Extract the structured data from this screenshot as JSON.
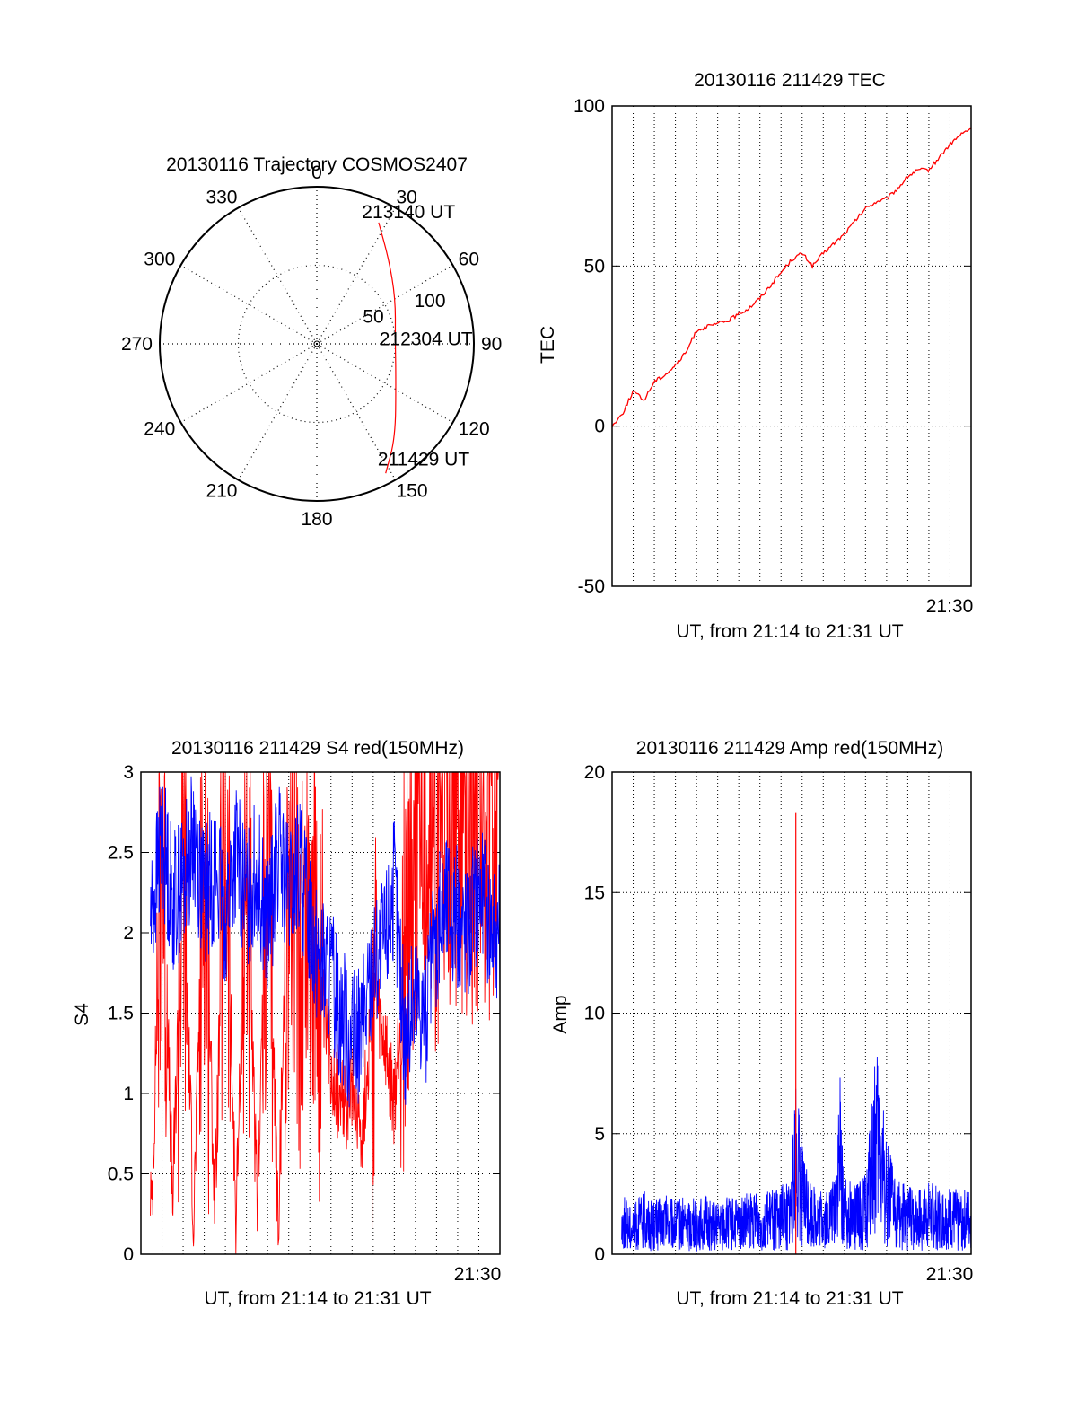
{
  "colors": {
    "red": "#ff0000",
    "blue": "#0000ff",
    "axis": "#000000",
    "grid": "#000000"
  },
  "chart_data": [
    {
      "type": "polar",
      "title": "20130116 Trajectory COSMOS2407",
      "angle_labels": [
        "0",
        "30",
        "60",
        "90",
        "120",
        "150",
        "180",
        "210",
        "240",
        "270",
        "300",
        "330"
      ],
      "radius_labels": [
        "50",
        "100"
      ],
      "trajectory": {
        "points": [
          {
            "az": 27,
            "el": 12
          },
          {
            "az": 40,
            "el": 26
          },
          {
            "az": 60,
            "el": 38
          },
          {
            "az": 88,
            "el": 45
          },
          {
            "az": 115,
            "el": 40
          },
          {
            "az": 140,
            "el": 20
          },
          {
            "az": 152,
            "el": 6
          }
        ],
        "labels": [
          {
            "text": "213140 UT",
            "az": 22,
            "el": 10
          },
          {
            "text": "212304 UT",
            "az": 88,
            "el": 50
          },
          {
            "text": "211429 UT",
            "az": 150,
            "el": 12
          }
        ]
      }
    },
    {
      "type": "line",
      "title": "20130116 211429 TEC",
      "xlabel": "UT, from 21:14 to 21:31 UT",
      "ylabel": "TEC",
      "xlim": [
        0,
        17
      ],
      "ylim": [
        -50,
        100
      ],
      "yticks": [
        -50,
        0,
        50,
        100
      ],
      "xtick_label": "21:30",
      "series": [
        {
          "color": "red",
          "x": [
            0,
            0.5,
            1,
            1.5,
            2,
            2.5,
            3,
            3.5,
            4,
            4.5,
            5,
            5.5,
            6,
            6.5,
            7,
            7.5,
            8,
            8.5,
            9,
            9.5,
            10,
            10.5,
            11,
            11.5,
            12,
            12.5,
            13,
            13.5,
            14,
            14.5,
            15,
            15.5,
            16,
            16.5,
            17
          ],
          "y": [
            0,
            4,
            11,
            8,
            14,
            16,
            19,
            23,
            30,
            31,
            32,
            33,
            35,
            37,
            40,
            44,
            48,
            52,
            54,
            50,
            54,
            57,
            60,
            64,
            68,
            70,
            71,
            74,
            78,
            80,
            80,
            84,
            88,
            91,
            93
          ]
        }
      ]
    },
    {
      "type": "line",
      "title": "20130116 211429 S4 red(150MHz)",
      "xlabel": "UT, from 21:14 to 21:31 UT",
      "ylabel": "S4",
      "xlim": [
        0,
        17
      ],
      "ylim": [
        0,
        3
      ],
      "yticks": [
        0,
        0.5,
        1,
        1.5,
        2,
        2.5,
        3
      ],
      "xtick_label": "21:30",
      "series": [
        {
          "color": "red",
          "x": [
            0,
            0.5,
            1,
            1.5,
            2,
            2.5,
            3,
            3.5,
            4,
            4.5,
            5,
            5.5,
            6,
            6.5,
            7,
            7.5,
            8,
            8.5,
            9,
            9.5,
            10,
            10.5,
            11,
            11.5,
            12,
            12.5,
            13,
            13.5,
            14,
            14.5,
            15,
            15.5,
            16,
            16.5,
            17
          ],
          "y": [
            2.6,
            0.2,
            2.7,
            0.3,
            2.5,
            0.2,
            2.6,
            0.3,
            2.7,
            0.2,
            2.4,
            0.3,
            2.6,
            0.2,
            2.5,
            1.9,
            2.2,
            1.6,
            1.2,
            0.9,
            1.0,
            0.8,
            1.6,
            1.3,
            0.9,
            1.9,
            2.8,
            2.9,
            2.6,
            2.8,
            2.9,
            2.7,
            2.9,
            2.8,
            2.9
          ]
        },
        {
          "color": "blue",
          "x": [
            0,
            0.5,
            1,
            1.5,
            2,
            2.5,
            3,
            3.5,
            4,
            4.5,
            5,
            5.5,
            6,
            6.5,
            7,
            7.5,
            8,
            8.5,
            9,
            9.5,
            10,
            10.5,
            11,
            11.5,
            12,
            12.5,
            13,
            13.5,
            14,
            14.5,
            15,
            15.5,
            16,
            16.5,
            17
          ],
          "y": [
            2.4,
            2.1,
            2.6,
            2.2,
            2.3,
            2.6,
            2.2,
            2.4,
            2.1,
            2.5,
            2.2,
            2.4,
            2.0,
            2.5,
            2.2,
            2.4,
            2.1,
            1.8,
            1.7,
            1.5,
            1.3,
            1.4,
            1.8,
            1.9,
            2.3,
            1.3,
            1.6,
            1.5,
            2.0,
            2.2,
            2.1,
            2.0,
            2.3,
            2.1,
            2.0
          ]
        }
      ]
    },
    {
      "type": "line",
      "title": "20130116 211429 Amp red(150MHz)",
      "xlabel": "UT, from 21:14 to 21:31 UT",
      "ylabel": "Amp",
      "xlim": [
        0,
        17
      ],
      "ylim": [
        0,
        20
      ],
      "yticks": [
        0,
        5,
        10,
        15,
        20
      ],
      "xtick_label": "21:30",
      "series": [
        {
          "color": "blue",
          "x": [
            0,
            0.5,
            1,
            1.5,
            2,
            2.5,
            3,
            3.5,
            4,
            4.5,
            5,
            5.5,
            6,
            6.5,
            7,
            7.5,
            8,
            8.5,
            8.7,
            9,
            9.5,
            10,
            10.5,
            10.8,
            11,
            11.5,
            12,
            12.5,
            12.8,
            13,
            13.5,
            14,
            14.5,
            15,
            15.5,
            16,
            16.5,
            17
          ],
          "y": [
            1.2,
            1.3,
            1.1,
            1.4,
            1.2,
            1.3,
            1.2,
            1.3,
            1.2,
            1.3,
            1.1,
            1.3,
            1.2,
            1.4,
            1.3,
            1.4,
            1.5,
            1.8,
            4.1,
            2.4,
            1.5,
            1.4,
            1.6,
            4.0,
            1.7,
            1.5,
            1.8,
            4.6,
            3.6,
            2.5,
            1.6,
            1.5,
            1.4,
            1.6,
            1.5,
            1.5,
            1.4,
            1.5
          ]
        },
        {
          "color": "red",
          "x": [
            8.7
          ],
          "y": [
            18.3
          ]
        }
      ]
    }
  ]
}
